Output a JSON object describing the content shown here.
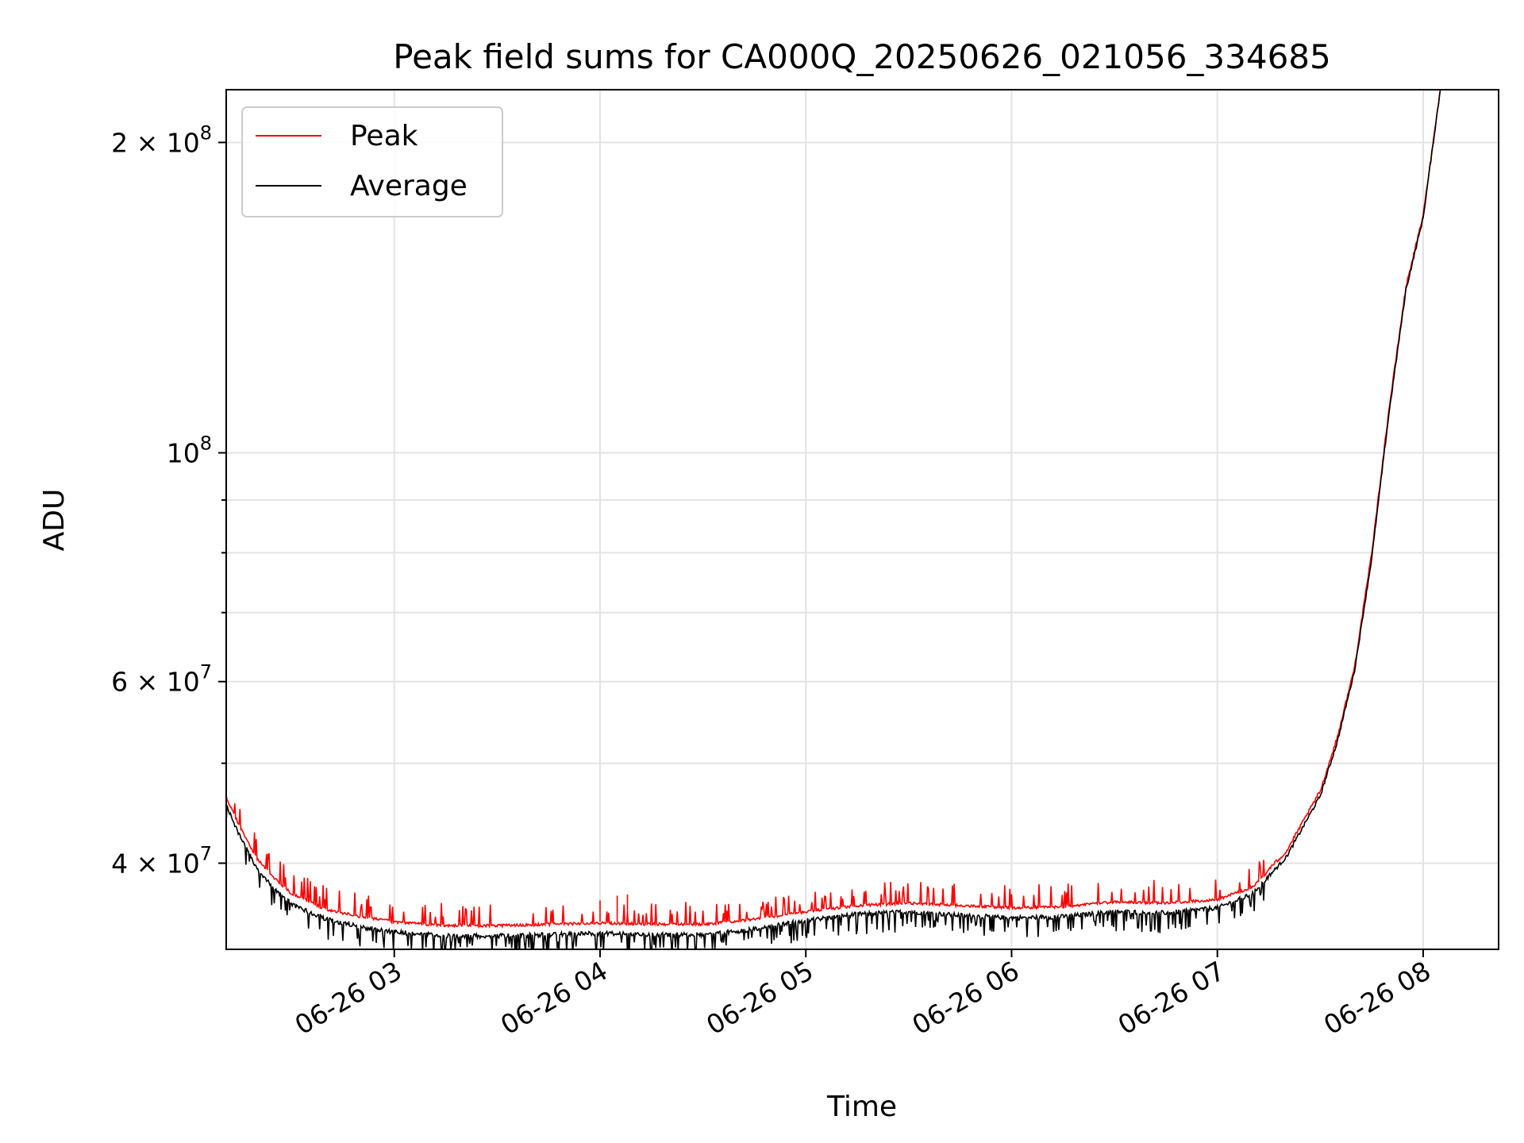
{
  "chart_data": {
    "type": "line",
    "title": "Peak field sums for CA000Q_20250626_021056_334685",
    "xlabel": "Time",
    "ylabel": "ADU",
    "x_scale": "time",
    "y_scale": "log",
    "xlim": [
      "2025-06-26 02:11",
      "2025-06-26 08:22"
    ],
    "ylim": [
      33000000,
      225000000
    ],
    "grid": true,
    "legend_position": "top-left",
    "x_ticks": [
      {
        "t": "2025-06-26 03:00",
        "label": "06-26 03"
      },
      {
        "t": "2025-06-26 04:00",
        "label": "06-26 04"
      },
      {
        "t": "2025-06-26 05:00",
        "label": "06-26 05"
      },
      {
        "t": "2025-06-26 06:00",
        "label": "06-26 06"
      },
      {
        "t": "2025-06-26 07:00",
        "label": "06-26 07"
      },
      {
        "t": "2025-06-26 08:00",
        "label": "06-26 08"
      }
    ],
    "y_ticks": [
      {
        "value": 40000000,
        "label_mantissa": "4 × 10",
        "label_exponent": "7"
      },
      {
        "value": 60000000,
        "label_mantissa": "6 × 10",
        "label_exponent": "7"
      },
      {
        "value": 100000000,
        "label_mantissa": "10",
        "label_exponent": "8"
      },
      {
        "value": 200000000,
        "label_mantissa": "2 × 10",
        "label_exponent": "8"
      }
    ],
    "y_minor_ticks": [
      50000000,
      70000000,
      80000000,
      90000000
    ],
    "series": [
      {
        "name": "Peak",
        "color": "#ff0000",
        "noise": "spiky-up",
        "points": [
          [
            "2025-06-26 02:11",
            46500000
          ],
          [
            "2025-06-26 02:15",
            43500000
          ],
          [
            "2025-06-26 02:20",
            40500000
          ],
          [
            "2025-06-26 02:25",
            38800000
          ],
          [
            "2025-06-26 02:30",
            37500000
          ],
          [
            "2025-06-26 02:40",
            36200000
          ],
          [
            "2025-06-26 02:50",
            35600000
          ],
          [
            "2025-06-26 03:00",
            35200000
          ],
          [
            "2025-06-26 03:15",
            34900000
          ],
          [
            "2025-06-26 03:30",
            34900000
          ],
          [
            "2025-06-26 03:45",
            35000000
          ],
          [
            "2025-06-26 04:00",
            35100000
          ],
          [
            "2025-06-26 04:15",
            35000000
          ],
          [
            "2025-06-26 04:30",
            35000000
          ],
          [
            "2025-06-26 04:45",
            35400000
          ],
          [
            "2025-06-26 05:00",
            36000000
          ],
          [
            "2025-06-26 05:15",
            36500000
          ],
          [
            "2025-06-26 05:30",
            36700000
          ],
          [
            "2025-06-26 05:45",
            36500000
          ],
          [
            "2025-06-26 06:00",
            36300000
          ],
          [
            "2025-06-26 06:15",
            36400000
          ],
          [
            "2025-06-26 06:30",
            36800000
          ],
          [
            "2025-06-26 06:45",
            36700000
          ],
          [
            "2025-06-26 07:00",
            37000000
          ],
          [
            "2025-06-26 07:10",
            38000000
          ],
          [
            "2025-06-26 07:20",
            41000000
          ],
          [
            "2025-06-26 07:30",
            47000000
          ],
          [
            "2025-06-26 07:35",
            53000000
          ],
          [
            "2025-06-26 07:40",
            62000000
          ],
          [
            "2025-06-26 07:45",
            80000000
          ],
          [
            "2025-06-26 07:50",
            110000000
          ],
          [
            "2025-06-26 07:55",
            145000000
          ],
          [
            "2025-06-26 08:00",
            170000000
          ],
          [
            "2025-06-26 08:05",
            225000000
          ]
        ]
      },
      {
        "name": "Average",
        "color": "#000000",
        "noise": "spiky-down",
        "points": [
          [
            "2025-06-26 02:11",
            45500000
          ],
          [
            "2025-06-26 02:15",
            42500000
          ],
          [
            "2025-06-26 02:20",
            39500000
          ],
          [
            "2025-06-26 02:25",
            37800000
          ],
          [
            "2025-06-26 02:30",
            36500000
          ],
          [
            "2025-06-26 02:40",
            35300000
          ],
          [
            "2025-06-26 02:50",
            34700000
          ],
          [
            "2025-06-26 03:00",
            34300000
          ],
          [
            "2025-06-26 03:15",
            34000000
          ],
          [
            "2025-06-26 03:30",
            34000000
          ],
          [
            "2025-06-26 03:45",
            34100000
          ],
          [
            "2025-06-26 04:00",
            34200000
          ],
          [
            "2025-06-26 04:15",
            34100000
          ],
          [
            "2025-06-26 04:30",
            34100000
          ],
          [
            "2025-06-26 04:45",
            34500000
          ],
          [
            "2025-06-26 05:00",
            35200000
          ],
          [
            "2025-06-26 05:15",
            35700000
          ],
          [
            "2025-06-26 05:30",
            35900000
          ],
          [
            "2025-06-26 05:45",
            35600000
          ],
          [
            "2025-06-26 06:00",
            35400000
          ],
          [
            "2025-06-26 06:15",
            35500000
          ],
          [
            "2025-06-26 06:30",
            35900000
          ],
          [
            "2025-06-26 06:45",
            35800000
          ],
          [
            "2025-06-26 07:00",
            36200000
          ],
          [
            "2025-06-26 07:10",
            37300000
          ],
          [
            "2025-06-26 07:20",
            40500000
          ],
          [
            "2025-06-26 07:30",
            46500000
          ],
          [
            "2025-06-26 07:35",
            52500000
          ],
          [
            "2025-06-26 07:40",
            61500000
          ],
          [
            "2025-06-26 07:45",
            79000000
          ],
          [
            "2025-06-26 07:50",
            109000000
          ],
          [
            "2025-06-26 07:55",
            144000000
          ],
          [
            "2025-06-26 08:00",
            169000000
          ],
          [
            "2025-06-26 08:05",
            225000000
          ]
        ]
      }
    ],
    "peak_outliers": [
      [
        "2025-06-26 04:00",
        36800000
      ],
      [
        "2025-06-26 04:05",
        37200000
      ],
      [
        "2025-06-26 04:08",
        37300000
      ]
    ]
  }
}
